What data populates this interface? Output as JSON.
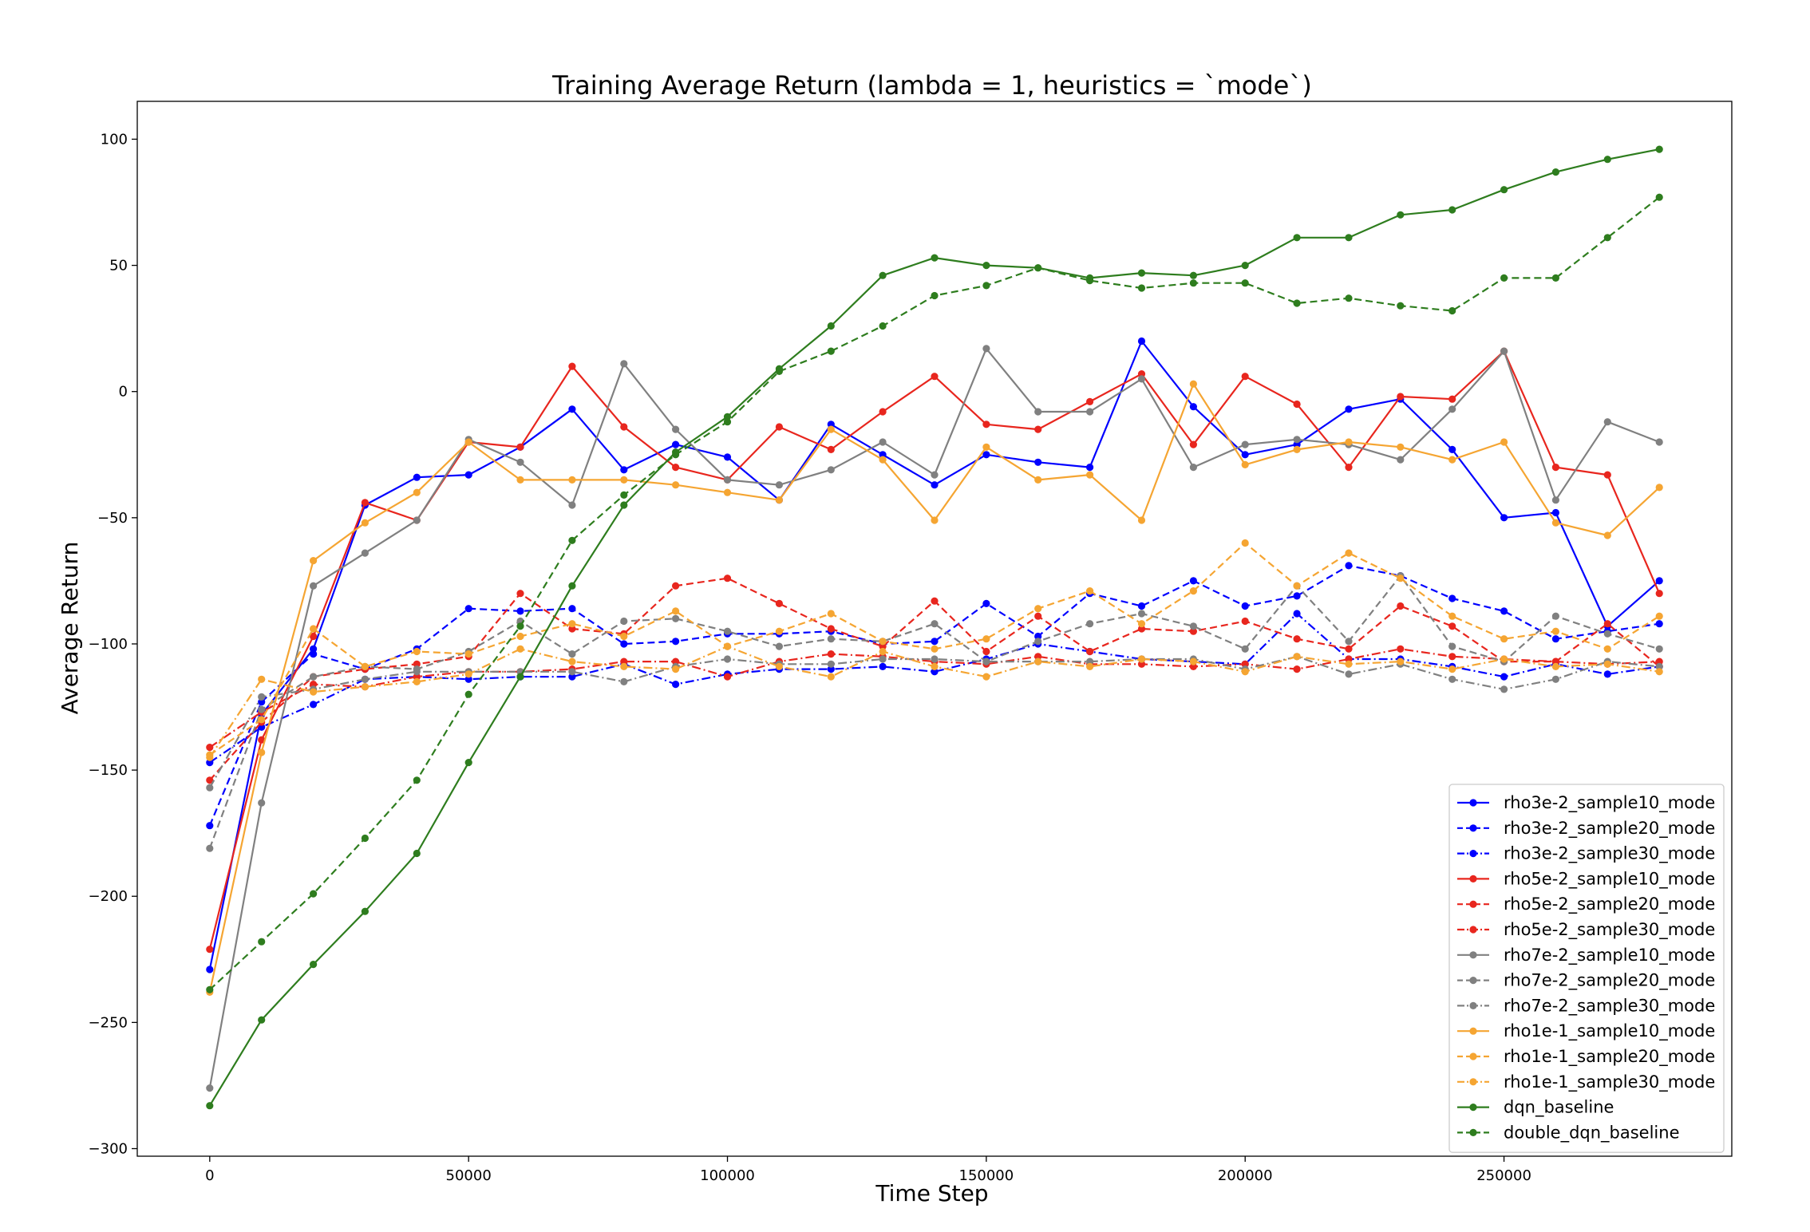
{
  "chart_data": {
    "type": "line",
    "title": "Training Average Return (lambda = 1, heuristics = `mode`)",
    "xlabel": "Time Step",
    "ylabel": "Average Return",
    "xlim": [
      -14000,
      294000
    ],
    "ylim": [
      -303,
      115
    ],
    "xticks": [
      0,
      50000,
      100000,
      150000,
      200000,
      250000
    ],
    "yticks": [
      100,
      50,
      0,
      -50,
      -100,
      -150,
      -200,
      -250,
      -300
    ],
    "ytick_labels": [
      "100",
      "50",
      "0",
      "−50",
      "−100",
      "−150",
      "−200",
      "−250",
      "−300"
    ],
    "grid": false,
    "legend_position": "lower right",
    "x": [
      0,
      10000,
      20000,
      30000,
      40000,
      50000,
      60000,
      70000,
      80000,
      90000,
      100000,
      110000,
      120000,
      130000,
      140000,
      150000,
      160000,
      170000,
      180000,
      190000,
      200000,
      210000,
      220000,
      230000,
      240000,
      250000,
      260000,
      270000,
      280000
    ],
    "series": [
      {
        "name": "rho3e-2_sample10_mode",
        "color": "#0000ff",
        "dash": "solid",
        "values": [
          -229,
          -128,
          -102,
          -45,
          -34,
          -33,
          -22,
          -7,
          -31,
          -21,
          -26,
          -43,
          -13,
          -25,
          -37,
          -25,
          -28,
          -30,
          20,
          -6,
          -25,
          -21,
          -7,
          -3,
          -23,
          -50,
          -48,
          -93,
          -75
        ]
      },
      {
        "name": "rho3e-2_sample20_mode",
        "color": "#0000ff",
        "dash": "dashed",
        "values": [
          -172,
          -123,
          -104,
          -110,
          -102,
          -86,
          -87,
          -86,
          -100,
          -99,
          -96,
          -96,
          -95,
          -100,
          -99,
          -84,
          -97,
          -80,
          -85,
          -75,
          -85,
          -81,
          -69,
          -73,
          -82,
          -87,
          -98,
          -95,
          -92
        ]
      },
      {
        "name": "rho3e-2_sample30_mode",
        "color": "#0000ff",
        "dash": "dashdot",
        "values": [
          -147,
          -133,
          -124,
          -114,
          -113,
          -114,
          -113,
          -113,
          -108,
          -116,
          -112,
          -110,
          -110,
          -109,
          -111,
          -106,
          -100,
          -103,
          -106,
          -107,
          -108,
          -88,
          -106,
          -106,
          -109,
          -113,
          -108,
          -112,
          -109
        ]
      },
      {
        "name": "rho5e-2_sample10_mode",
        "color": "#e8261e",
        "dash": "solid",
        "values": [
          -221,
          -138,
          -97,
          -44,
          -51,
          -20,
          -22,
          10,
          -14,
          -30,
          -35,
          -14,
          -23,
          -8,
          6,
          -13,
          -15,
          -4,
          7,
          -21,
          6,
          -5,
          -30,
          -2,
          -3,
          16,
          -30,
          -33,
          -80
        ]
      },
      {
        "name": "rho5e-2_sample20_mode",
        "color": "#e8261e",
        "dash": "dashed",
        "values": [
          -154,
          -131,
          -113,
          -110,
          -108,
          -105,
          -80,
          -94,
          -96,
          -77,
          -74,
          -84,
          -94,
          -101,
          -83,
          -103,
          -89,
          -103,
          -94,
          -95,
          -91,
          -98,
          -102,
          -85,
          -93,
          -107,
          -107,
          -92,
          -109
        ]
      },
      {
        "name": "rho5e-2_sample30_mode",
        "color": "#e8261e",
        "dash": "dashdot",
        "values": [
          -141,
          -127,
          -116,
          -117,
          -113,
          -111,
          -111,
          -110,
          -107,
          -107,
          -113,
          -107,
          -104,
          -105,
          -107,
          -108,
          -105,
          -108,
          -108,
          -109,
          -108,
          -110,
          -106,
          -102,
          -105,
          -106,
          -107,
          -108,
          -107
        ]
      },
      {
        "name": "rho7e-2_sample10_mode",
        "color": "#808080",
        "dash": "solid",
        "values": [
          -276,
          -163,
          -77,
          -64,
          -51,
          -19,
          -28,
          -45,
          11,
          -15,
          -35,
          -37,
          -31,
          -20,
          -33,
          17,
          -8,
          -8,
          5,
          -30,
          -21,
          -19,
          -21,
          -27,
          -7,
          16,
          -43,
          -12,
          -20
        ]
      },
      {
        "name": "rho7e-2_sample20_mode",
        "color": "#808080",
        "dash": "dashed",
        "values": [
          -181,
          -126,
          -113,
          -109,
          -110,
          -103,
          -91,
          -104,
          -91,
          -90,
          -95,
          -101,
          -98,
          -99,
          -92,
          -107,
          -99,
          -92,
          -88,
          -93,
          -102,
          -77,
          -99,
          -73,
          -101,
          -107,
          -89,
          -96,
          -102
        ]
      },
      {
        "name": "rho7e-2_sample30_mode",
        "color": "#808080",
        "dash": "dashdot",
        "values": [
          -157,
          -121,
          -118,
          -114,
          -111,
          -111,
          -111,
          -111,
          -115,
          -109,
          -106,
          -108,
          -108,
          -106,
          -106,
          -107,
          -107,
          -107,
          -106,
          -106,
          -110,
          -105,
          -112,
          -108,
          -114,
          -118,
          -114,
          -107,
          -109
        ]
      },
      {
        "name": "rho1e-1_sample10_mode",
        "color": "#f5a532",
        "dash": "solid",
        "values": [
          -238,
          -143,
          -67,
          -52,
          -40,
          -20,
          -35,
          -35,
          -35,
          -37,
          -40,
          -43,
          -15,
          -27,
          -51,
          -22,
          -35,
          -33,
          -51,
          3,
          -29,
          -23,
          -20,
          -22,
          -27,
          -20,
          -52,
          -57,
          -38
        ]
      },
      {
        "name": "rho1e-1_sample20_mode",
        "color": "#f5a532",
        "dash": "dashed",
        "values": [
          -144,
          -130,
          -94,
          -109,
          -103,
          -104,
          -97,
          -92,
          -97,
          -87,
          -101,
          -95,
          -88,
          -99,
          -102,
          -98,
          -86,
          -79,
          -92,
          -79,
          -60,
          -77,
          -64,
          -74,
          -89,
          -98,
          -95,
          -102,
          -89
        ]
      },
      {
        "name": "rho1e-1_sample30_mode",
        "color": "#f5a532",
        "dash": "dashdot",
        "values": [
          -145,
          -114,
          -119,
          -117,
          -115,
          -112,
          -102,
          -107,
          -109,
          -110,
          -101,
          -109,
          -113,
          -103,
          -109,
          -113,
          -107,
          -109,
          -106,
          -107,
          -111,
          -105,
          -108,
          -107,
          -110,
          -106,
          -109,
          -108,
          -111
        ]
      },
      {
        "name": "dqn_baseline",
        "color": "#2e7d1e",
        "dash": "solid",
        "values": [
          -283,
          -249,
          -227,
          -206,
          -183,
          -147,
          -113,
          -77,
          -45,
          -24,
          -10,
          9,
          26,
          46,
          53,
          50,
          49,
          45,
          47,
          46,
          50,
          61,
          61,
          70,
          72,
          80,
          87,
          92,
          96
        ]
      },
      {
        "name": "double_dqn_baseline",
        "color": "#2e7d1e",
        "dash": "dashed",
        "values": [
          -237,
          -218,
          -199,
          -177,
          -154,
          -120,
          -93,
          -59,
          -41,
          -25,
          -12,
          8,
          16,
          26,
          38,
          42,
          49,
          44,
          41,
          43,
          43,
          35,
          37,
          34,
          32,
          45,
          45,
          61,
          77
        ]
      }
    ]
  }
}
